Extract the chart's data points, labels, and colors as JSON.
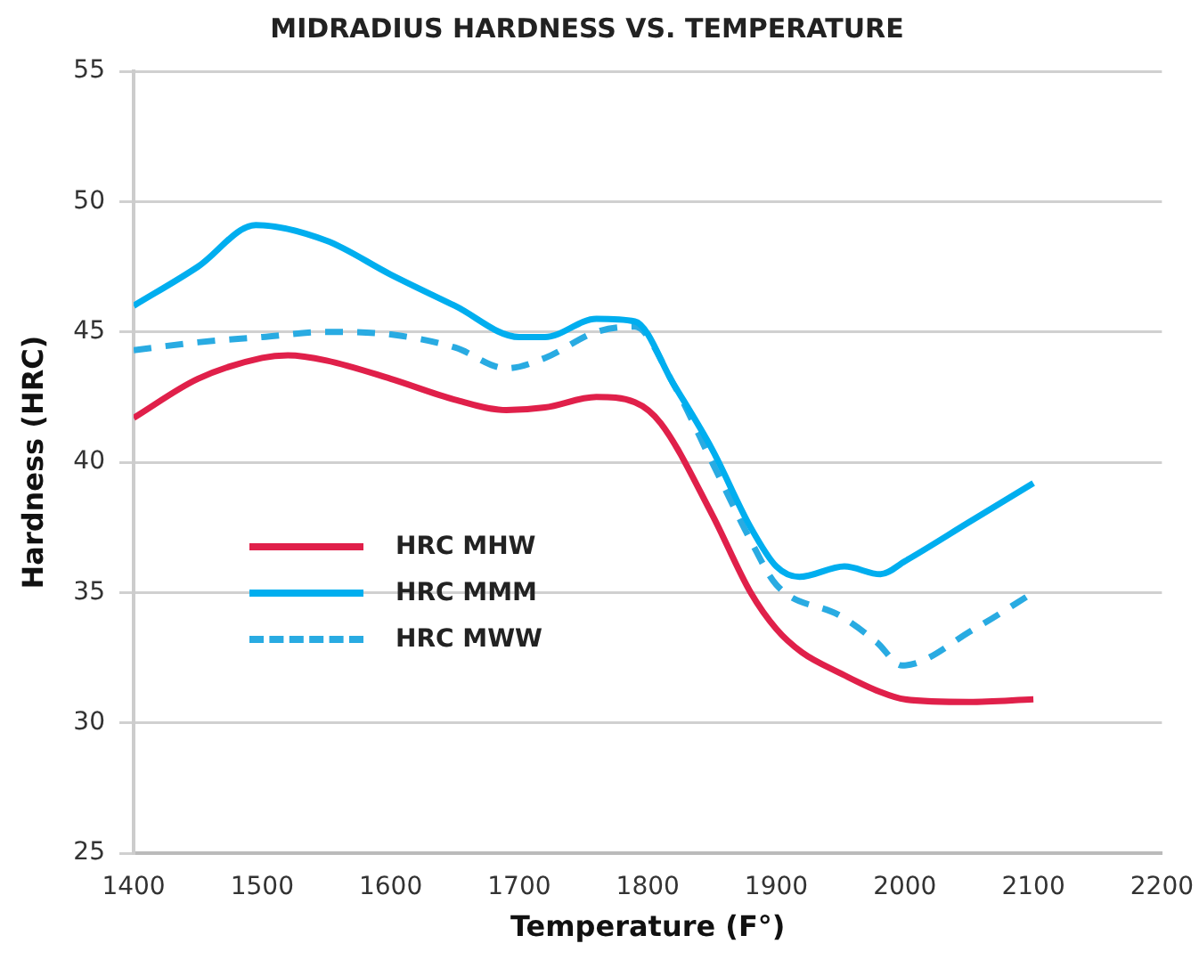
{
  "chart_data": {
    "type": "line",
    "title": "MIDRADIUS HARDNESS VS. TEMPERATURE",
    "xlabel": "Temperature (F°)",
    "ylabel": "Hardness (HRC)",
    "xlim": [
      1400,
      2200
    ],
    "xticks": [
      1400,
      1500,
      1600,
      1700,
      1800,
      1900,
      2000,
      2100,
      2200
    ],
    "ylim": [
      25,
      55
    ],
    "yticks": [
      25,
      30,
      35,
      40,
      45,
      50,
      55
    ],
    "grid": "y",
    "legend": "left",
    "marker": "none",
    "series": [
      {
        "name": "HRC MHW",
        "color": "#e0204a",
        "line_style": "solid",
        "x": [
          1400,
          1450,
          1500,
          1520,
          1550,
          1600,
          1650,
          1690,
          1720,
          1760,
          1790,
          1810,
          1850,
          1880,
          1900,
          1920,
          1950,
          1980,
          2000,
          2050,
          2100
        ],
        "values": [
          41.7,
          43.2,
          44.0,
          44.1,
          43.9,
          43.2,
          42.4,
          42.0,
          42.1,
          42.5,
          42.3,
          41.5,
          38.0,
          35.0,
          33.6,
          32.7,
          31.9,
          31.2,
          30.9,
          30.8,
          30.9
        ]
      },
      {
        "name": "HRC MMM",
        "color": "#00aeef",
        "line_style": "solid",
        "x": [
          1400,
          1450,
          1495,
          1550,
          1600,
          1650,
          1700,
          1720,
          1760,
          1790,
          1820,
          1850,
          1880,
          1900,
          1918,
          1953,
          1981,
          2000,
          2050,
          2100
        ],
        "values": [
          46.0,
          47.5,
          49.1,
          48.5,
          47.2,
          46.0,
          44.8,
          44.8,
          45.5,
          45.4,
          43.0,
          40.5,
          37.5,
          36.0,
          35.6,
          36.0,
          35.7,
          36.2,
          37.7,
          39.2
        ]
      },
      {
        "name": "HRC MWW",
        "color": "#29abe2",
        "line_style": "dashed",
        "x": [
          1400,
          1450,
          1500,
          1550,
          1600,
          1650,
          1690,
          1720,
          1760,
          1790,
          1820,
          1850,
          1880,
          1900,
          1950,
          1978,
          1998,
          2054,
          2100
        ],
        "values": [
          44.3,
          44.6,
          44.8,
          45.0,
          44.9,
          44.4,
          43.6,
          44.0,
          45.0,
          45.2,
          43.0,
          40.0,
          37.0,
          35.3,
          34.1,
          33.1,
          32.2,
          33.6,
          35.0
        ]
      }
    ]
  }
}
